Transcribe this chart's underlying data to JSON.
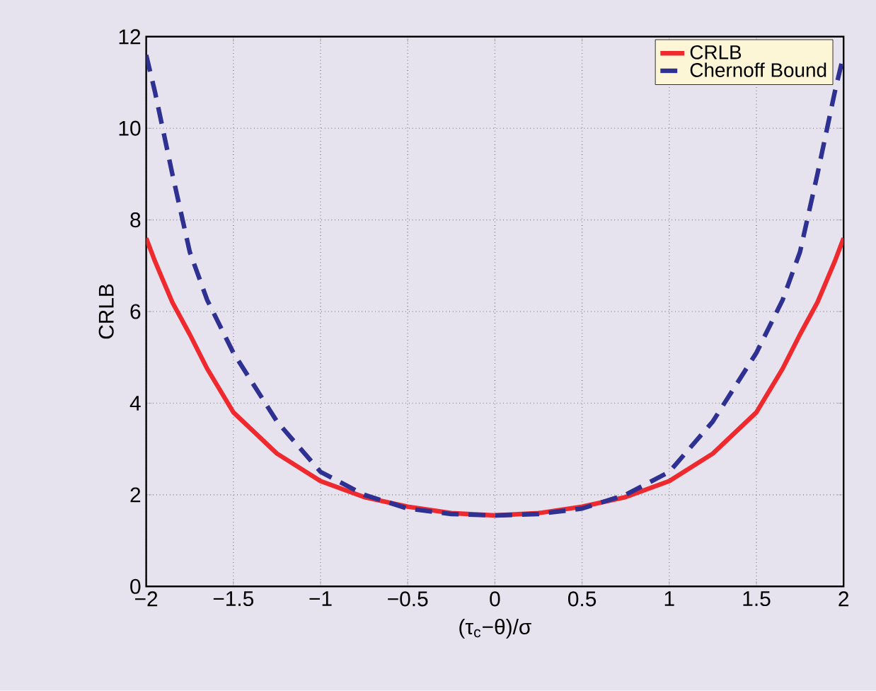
{
  "chart_data": {
    "type": "line",
    "xlabel": "(τ$_{c}$−θ)/σ",
    "ylabel": "CRLB",
    "x": [
      -2,
      -1.95,
      -1.9,
      -1.85,
      -1.75,
      -1.65,
      -1.5,
      -1.25,
      -1,
      -0.75,
      -0.5,
      -0.25,
      0,
      0.25,
      0.5,
      0.75,
      1,
      1.25,
      1.5,
      1.65,
      1.75,
      1.85,
      1.9,
      1.95,
      2
    ],
    "series": [
      {
        "name": "CRLB",
        "color": "#ee2a2f",
        "line_style": "solid",
        "values": [
          7.6,
          7.1,
          6.65,
          6.2,
          5.5,
          4.75,
          3.8,
          2.9,
          2.3,
          1.95,
          1.74,
          1.6,
          1.55,
          1.6,
          1.74,
          1.95,
          2.3,
          2.9,
          3.8,
          4.75,
          5.5,
          6.2,
          6.65,
          7.1,
          7.6
        ]
      },
      {
        "name": "Chernoff Bound",
        "color": "#2e3192",
        "line_style": "dashed",
        "values": [
          11.6,
          10.8,
          9.9,
          9.0,
          7.3,
          6.25,
          5.1,
          3.6,
          2.5,
          2.0,
          1.7,
          1.58,
          1.55,
          1.58,
          1.7,
          2.0,
          2.5,
          3.6,
          5.1,
          6.25,
          7.3,
          9.0,
          9.9,
          10.8,
          11.6
        ]
      }
    ],
    "xlim": [
      -2,
      2
    ],
    "ylim": [
      0,
      12
    ],
    "xticks": [
      {
        "value": -2,
        "label": "−2"
      },
      {
        "value": -1.5,
        "label": "−1.5"
      },
      {
        "value": -1,
        "label": "−1"
      },
      {
        "value": -0.5,
        "label": "−0.5"
      },
      0,
      0.5,
      1,
      1.5,
      2
    ],
    "yticks": [
      0,
      2,
      4,
      6,
      8,
      10,
      12
    ],
    "grid": true,
    "legend": "top right",
    "marker": "none"
  }
}
